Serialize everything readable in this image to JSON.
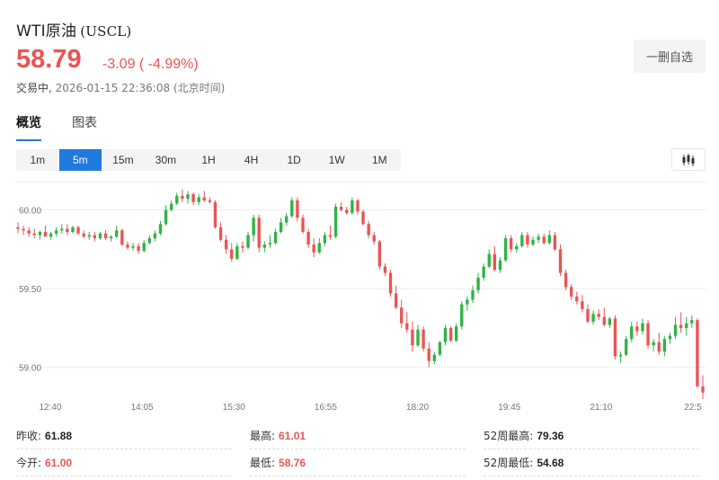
{
  "header": {
    "name": "WTI原油",
    "code": "(USCL)",
    "price": "58.79",
    "change": "-3.09",
    "change_pct": "( -4.99%)",
    "status_label": "交易中,",
    "timestamp": "2026-01-15 22:36:08",
    "timezone": "(北京时间)",
    "watch_button": "一删自选"
  },
  "tabs": [
    {
      "label": "概览",
      "active": true
    },
    {
      "label": "图表",
      "active": false
    }
  ],
  "intervals": [
    "1m",
    "5m",
    "15m",
    "30m",
    "1H",
    "4H",
    "1D",
    "1W",
    "1M"
  ],
  "active_interval": "5m",
  "colors": {
    "up": "#2fb344",
    "down": "#eb5454",
    "accent": "#1f7ae0"
  },
  "chart_data": {
    "type": "candlestick",
    "x_tick_labels": [
      "12:40",
      "14:05",
      "15:30",
      "16:55",
      "18:20",
      "19:45",
      "21:10",
      "22:5"
    ],
    "y_tick_labels": [
      "60.00",
      "59.50",
      "59.00"
    ],
    "ylim": [
      58.81,
      60.18
    ],
    "ticks_y": [
      60.0,
      59.5,
      59.0
    ],
    "grid": true,
    "candles": [
      [
        59.89,
        59.92,
        59.85,
        59.88
      ],
      [
        59.88,
        59.9,
        59.84,
        59.87
      ],
      [
        59.87,
        59.89,
        59.83,
        59.85
      ],
      [
        59.85,
        59.88,
        59.82,
        59.84
      ],
      [
        59.84,
        59.87,
        59.81,
        59.86
      ],
      [
        59.86,
        59.9,
        59.83,
        59.83
      ],
      [
        59.83,
        59.86,
        59.81,
        59.85
      ],
      [
        59.85,
        59.89,
        59.83,
        59.87
      ],
      [
        59.87,
        59.91,
        59.85,
        59.88
      ],
      [
        59.88,
        59.91,
        59.84,
        59.86
      ],
      [
        59.86,
        59.9,
        59.85,
        59.89
      ],
      [
        59.89,
        59.9,
        59.84,
        59.85
      ],
      [
        59.85,
        59.87,
        59.82,
        59.83
      ],
      [
        59.83,
        59.86,
        59.81,
        59.84
      ],
      [
        59.84,
        59.86,
        59.8,
        59.82
      ],
      [
        59.82,
        59.86,
        59.81,
        59.85
      ],
      [
        59.85,
        59.87,
        59.81,
        59.82
      ],
      [
        59.82,
        59.84,
        59.8,
        59.83
      ],
      [
        59.83,
        59.9,
        59.82,
        59.87
      ],
      [
        59.87,
        59.88,
        59.77,
        59.78
      ],
      [
        59.78,
        59.8,
        59.75,
        59.76
      ],
      [
        59.76,
        59.79,
        59.74,
        59.77
      ],
      [
        59.77,
        59.79,
        59.72,
        59.74
      ],
      [
        59.74,
        59.81,
        59.73,
        59.79
      ],
      [
        59.79,
        59.84,
        59.78,
        59.82
      ],
      [
        59.82,
        59.87,
        59.8,
        59.85
      ],
      [
        59.85,
        59.93,
        59.84,
        59.91
      ],
      [
        59.91,
        60.03,
        59.9,
        60.0
      ],
      [
        60.0,
        60.06,
        59.99,
        60.04
      ],
      [
        60.04,
        60.11,
        60.03,
        60.09
      ],
      [
        60.09,
        60.13,
        60.05,
        60.07
      ],
      [
        60.07,
        60.12,
        60.04,
        60.1
      ],
      [
        60.1,
        60.11,
        60.03,
        60.05
      ],
      [
        60.05,
        60.1,
        60.03,
        60.08
      ],
      [
        60.08,
        60.12,
        60.05,
        60.06
      ],
      [
        60.06,
        60.08,
        60.04,
        60.05
      ],
      [
        60.05,
        60.06,
        59.88,
        59.89
      ],
      [
        59.89,
        59.92,
        59.8,
        59.81
      ],
      [
        59.81,
        59.84,
        59.72,
        59.75
      ],
      [
        59.75,
        59.79,
        59.67,
        59.69
      ],
      [
        59.69,
        59.79,
        59.68,
        59.77
      ],
      [
        59.77,
        59.8,
        59.73,
        59.76
      ],
      [
        59.76,
        59.86,
        59.75,
        59.84
      ],
      [
        59.84,
        59.97,
        59.8,
        59.95
      ],
      [
        59.95,
        59.97,
        59.73,
        59.76
      ],
      [
        59.76,
        59.8,
        59.73,
        59.78
      ],
      [
        59.78,
        59.84,
        59.76,
        59.79
      ],
      [
        59.79,
        59.88,
        59.78,
        59.86
      ],
      [
        59.86,
        59.95,
        59.85,
        59.92
      ],
      [
        59.92,
        59.98,
        59.9,
        59.96
      ],
      [
        59.96,
        60.08,
        59.95,
        60.06
      ],
      [
        60.06,
        60.08,
        59.93,
        59.95
      ],
      [
        59.95,
        59.97,
        59.85,
        59.86
      ],
      [
        59.86,
        59.88,
        59.76,
        59.78
      ],
      [
        59.78,
        59.82,
        59.7,
        59.73
      ],
      [
        59.73,
        59.82,
        59.72,
        59.79
      ],
      [
        59.79,
        59.86,
        59.77,
        59.84
      ],
      [
        59.84,
        59.9,
        59.81,
        59.83
      ],
      [
        59.83,
        60.04,
        59.82,
        60.02
      ],
      [
        60.02,
        60.05,
        59.99,
        60.0
      ],
      [
        60.0,
        60.02,
        59.97,
        59.98
      ],
      [
        59.98,
        60.08,
        59.97,
        60.06
      ],
      [
        60.06,
        60.07,
        59.97,
        59.99
      ],
      [
        59.99,
        60.0,
        59.9,
        59.91
      ],
      [
        59.91,
        59.93,
        59.82,
        59.84
      ],
      [
        59.84,
        59.86,
        59.78,
        59.8
      ],
      [
        59.8,
        59.81,
        59.62,
        59.64
      ],
      [
        59.64,
        59.66,
        59.58,
        59.6
      ],
      [
        59.6,
        59.62,
        59.45,
        59.47
      ],
      [
        59.47,
        59.52,
        59.37,
        59.38
      ],
      [
        59.38,
        59.43,
        59.25,
        59.28
      ],
      [
        59.28,
        59.35,
        59.22,
        59.24
      ],
      [
        59.24,
        59.29,
        59.1,
        59.14
      ],
      [
        59.14,
        59.27,
        59.13,
        59.24
      ],
      [
        59.24,
        59.26,
        59.1,
        59.12
      ],
      [
        59.12,
        59.16,
        59.0,
        59.04
      ],
      [
        59.04,
        59.1,
        59.02,
        59.08
      ],
      [
        59.08,
        59.17,
        59.07,
        59.16
      ],
      [
        59.16,
        59.27,
        59.14,
        59.25
      ],
      [
        59.25,
        59.26,
        59.16,
        59.17
      ],
      [
        59.17,
        59.28,
        59.16,
        59.26
      ],
      [
        59.26,
        59.42,
        59.24,
        59.4
      ],
      [
        59.4,
        59.45,
        59.36,
        59.43
      ],
      [
        59.43,
        59.52,
        59.41,
        59.49
      ],
      [
        59.49,
        59.6,
        59.47,
        59.57
      ],
      [
        59.57,
        59.66,
        59.55,
        59.64
      ],
      [
        59.64,
        59.75,
        59.63,
        59.72
      ],
      [
        59.72,
        59.77,
        59.61,
        59.62
      ],
      [
        59.62,
        59.7,
        59.6,
        59.68
      ],
      [
        59.68,
        59.84,
        59.67,
        59.82
      ],
      [
        59.82,
        59.84,
        59.73,
        59.75
      ],
      [
        59.75,
        59.79,
        59.73,
        59.77
      ],
      [
        59.77,
        59.86,
        59.76,
        59.84
      ],
      [
        59.84,
        59.86,
        59.76,
        59.78
      ],
      [
        59.78,
        59.83,
        59.77,
        59.81
      ],
      [
        59.81,
        59.85,
        59.79,
        59.83
      ],
      [
        59.83,
        59.85,
        59.78,
        59.79
      ],
      [
        59.79,
        59.87,
        59.78,
        59.84
      ],
      [
        59.84,
        59.86,
        59.74,
        59.75
      ],
      [
        59.75,
        59.78,
        59.58,
        59.6
      ],
      [
        59.6,
        59.62,
        59.49,
        59.51
      ],
      [
        59.51,
        59.53,
        59.43,
        59.45
      ],
      [
        59.45,
        59.48,
        59.4,
        59.42
      ],
      [
        59.42,
        59.46,
        59.35,
        59.37
      ],
      [
        59.37,
        59.4,
        59.28,
        59.29
      ],
      [
        59.29,
        59.36,
        59.27,
        59.34
      ],
      [
        59.34,
        59.37,
        59.3,
        59.32
      ],
      [
        59.32,
        59.38,
        59.26,
        59.27
      ],
      [
        59.27,
        59.32,
        59.25,
        59.31
      ],
      [
        59.31,
        59.33,
        59.05,
        59.07
      ],
      [
        59.07,
        59.1,
        59.03,
        59.08
      ],
      [
        59.08,
        59.2,
        59.07,
        59.18
      ],
      [
        59.18,
        59.29,
        59.16,
        59.26
      ],
      [
        59.26,
        59.29,
        59.2,
        59.23
      ],
      [
        59.23,
        59.31,
        59.21,
        59.28
      ],
      [
        59.28,
        59.3,
        59.12,
        59.14
      ],
      [
        59.14,
        59.18,
        59.1,
        59.16
      ],
      [
        59.16,
        59.22,
        59.08,
        59.1
      ],
      [
        59.1,
        59.2,
        59.07,
        59.18
      ],
      [
        59.18,
        59.22,
        59.15,
        59.2
      ],
      [
        59.2,
        59.32,
        59.18,
        59.27
      ],
      [
        59.27,
        59.35,
        59.22,
        59.25
      ],
      [
        59.25,
        59.32,
        59.2,
        59.28
      ],
      [
        59.28,
        59.33,
        59.25,
        59.3
      ],
      [
        59.3,
        59.31,
        58.87,
        58.88
      ],
      [
        58.88,
        58.95,
        58.8,
        58.84
      ]
    ]
  },
  "stats": [
    [
      {
        "label": "昨收:",
        "value": "61.88",
        "red": false
      },
      {
        "label": "最高:",
        "value": "61.01",
        "red": true
      },
      {
        "label": "52周最高:",
        "value": "79.36",
        "red": false
      }
    ],
    [
      {
        "label": "今开:",
        "value": "61.00",
        "red": true
      },
      {
        "label": "最低:",
        "value": "58.76",
        "red": true
      },
      {
        "label": "52周最低:",
        "value": "54.68",
        "red": false
      }
    ]
  ]
}
